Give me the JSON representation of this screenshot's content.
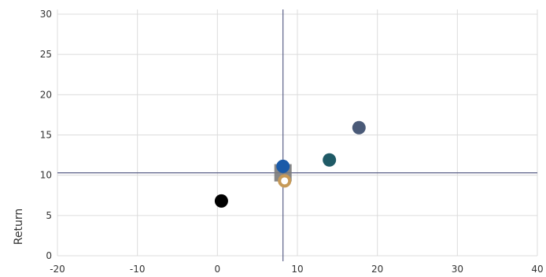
{
  "chart_data": {
    "type": "scatter",
    "title": "",
    "xlabel": "",
    "ylabel": "Return",
    "xlim": [
      -20,
      40
    ],
    "ylim": [
      0,
      30
    ],
    "x_ticks": [
      -20,
      -10,
      0,
      10,
      20,
      30,
      40
    ],
    "y_ticks": [
      0,
      5,
      10,
      15,
      20,
      25,
      30
    ],
    "grid": true,
    "reference_lines": {
      "x": 8.2,
      "y": 10.3,
      "color": "#5a5f87"
    },
    "points": [
      {
        "x": 0.5,
        "y": 6.8,
        "color": "#000000",
        "marker": "circle"
      },
      {
        "x": 8.2,
        "y": 10.3,
        "color": "#7a7a7a",
        "marker": "square"
      },
      {
        "x": 8.2,
        "y": 11.1,
        "color": "#1a5aa8",
        "marker": "circle"
      },
      {
        "x": 8.4,
        "y": 9.3,
        "color": "#c79a58",
        "marker": "ring"
      },
      {
        "x": 14.0,
        "y": 11.9,
        "color": "#1f5a66",
        "marker": "circle"
      },
      {
        "x": 17.7,
        "y": 15.9,
        "color": "#4a5a78",
        "marker": "circle"
      }
    ]
  }
}
